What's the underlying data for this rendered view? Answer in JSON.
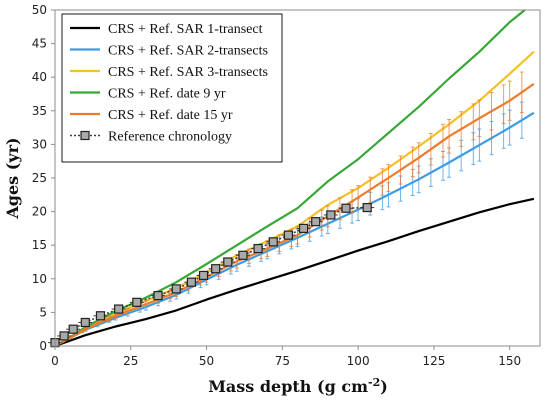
{
  "chart_data": {
    "type": "line",
    "xlabel": "Mass depth (g cm",
    "xlabel_unit_sup": "-2",
    "xlabel_close": ")",
    "ylabel": "Ages (yr)",
    "xlim": [
      0,
      160
    ],
    "ylim": [
      0,
      50
    ],
    "x_ticks": [
      0,
      25,
      50,
      75,
      100,
      125,
      150
    ],
    "y_ticks": [
      0,
      5,
      10,
      15,
      20,
      25,
      30,
      35,
      40,
      45,
      50
    ],
    "grid": false,
    "legend_position": "top-left",
    "series": [
      {
        "name": "CRS + Ref. SAR 1-transect",
        "color": "#000000",
        "style": "solid",
        "x": [
          0,
          5,
          10,
          20,
          30,
          40,
          50,
          60,
          70,
          80,
          90,
          100,
          110,
          120,
          130,
          140,
          150,
          158
        ],
        "y": [
          0,
          0.8,
          1.6,
          2.9,
          4.0,
          5.3,
          6.9,
          8.4,
          9.8,
          11.2,
          12.7,
          14.2,
          15.6,
          17.1,
          18.5,
          19.9,
          21.1,
          21.9
        ]
      },
      {
        "name": "CRS + Ref. SAR 2-transects",
        "color": "#3d9be0",
        "style": "solid",
        "errors": true,
        "x": [
          0,
          5,
          10,
          20,
          30,
          40,
          50,
          60,
          70,
          80,
          90,
          100,
          110,
          120,
          130,
          140,
          150,
          158
        ],
        "y": [
          0,
          1.2,
          2.4,
          4.2,
          5.8,
          7.6,
          9.9,
          12.1,
          14.1,
          16.1,
          18.2,
          20.3,
          22.5,
          24.8,
          27.3,
          29.9,
          32.5,
          34.7
        ]
      },
      {
        "name": "CRS + Ref. SAR 3-transects",
        "color": "#f5c022",
        "style": "solid",
        "x": [
          0,
          5,
          10,
          20,
          30,
          40,
          50,
          60,
          70,
          80,
          90,
          100,
          110,
          120,
          130,
          140,
          150,
          158
        ],
        "y": [
          0,
          1.3,
          2.7,
          4.8,
          6.7,
          8.6,
          11.0,
          13.5,
          15.6,
          17.8,
          21.0,
          23.5,
          26.5,
          29.7,
          33.0,
          36.5,
          40.5,
          43.8
        ]
      },
      {
        "name": "CRS + Ref. date 9 yr",
        "color": "#37a837",
        "style": "solid",
        "x": [
          0,
          5,
          10,
          20,
          30,
          40,
          50,
          60,
          70,
          80,
          90,
          100,
          110,
          120,
          130,
          140,
          150,
          155
        ],
        "y": [
          0,
          1.3,
          2.8,
          5.2,
          7.2,
          9.5,
          12.2,
          15.0,
          17.8,
          20.5,
          24.5,
          27.8,
          31.7,
          35.6,
          39.8,
          43.8,
          48.2,
          50.0
        ]
      },
      {
        "name": "CRS + Ref. date 15 yr",
        "color": "#ee7a2c",
        "style": "solid",
        "errors": true,
        "x": [
          0,
          5,
          10,
          20,
          30,
          40,
          50,
          60,
          70,
          80,
          90,
          100,
          110,
          120,
          130,
          140,
          150,
          158
        ],
        "y": [
          0,
          1.2,
          2.5,
          4.5,
          6.2,
          8.0,
          10.3,
          12.6,
          14.5,
          16.5,
          19.3,
          22.1,
          25.0,
          28.0,
          31.2,
          33.9,
          36.5,
          39.0
        ]
      },
      {
        "name": "Reference chronology",
        "color": "#3c3c3c",
        "style": "dotted",
        "marker": "square",
        "x": [
          0,
          3,
          6,
          10,
          15,
          21,
          27,
          34,
          40,
          45,
          49,
          53,
          57,
          62,
          67,
          72,
          77,
          82,
          86,
          91,
          96,
          103
        ],
        "y": [
          0.5,
          1.5,
          2.5,
          3.5,
          4.5,
          5.5,
          6.5,
          7.5,
          8.5,
          9.5,
          10.5,
          11.5,
          12.5,
          13.5,
          14.5,
          15.5,
          16.5,
          17.5,
          18.5,
          19.5,
          20.5,
          20.6
        ]
      }
    ]
  }
}
